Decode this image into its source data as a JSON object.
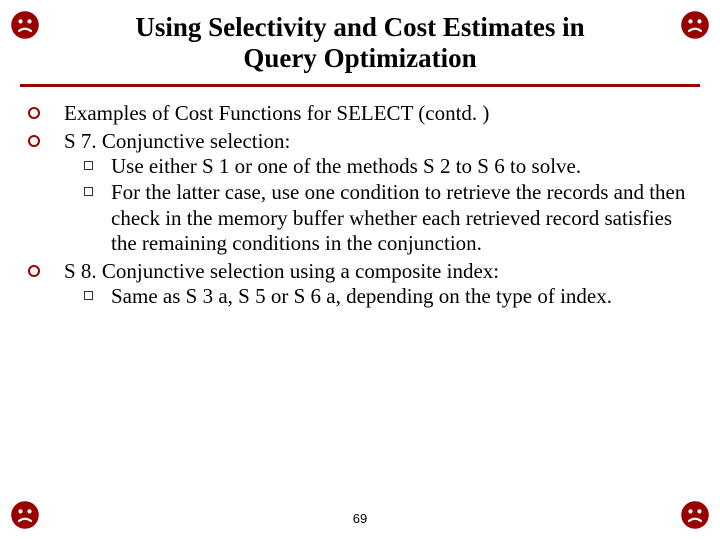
{
  "colors": {
    "accent": "#990000",
    "rule": "#990000",
    "bullet_m": "#990000",
    "bullet_q": "#333333",
    "text": "#000000"
  },
  "title": {
    "line1": "Using Selectivity and Cost Estimates in",
    "line2": "Query Optimization",
    "fontsize": 27
  },
  "body_fontsize": 21,
  "items": [
    {
      "text": "Examples of Cost Functions for SELECT (contd. )",
      "sub": []
    },
    {
      "text": "S 7. Conjunctive selection:",
      "sub": [
        "Use either S 1 or one of the methods S 2 to S 6 to solve.",
        "For the latter case, use one condition to retrieve the records and then check in the memory buffer whether each retrieved record satisfies the remaining conditions in the conjunction."
      ]
    },
    {
      "text": "S 8. Conjunctive selection using a composite index:",
      "sub": [
        "Same as S 3 a, S 5 or S 6 a, depending on the type of index."
      ]
    }
  ],
  "page_number": "69",
  "page_number_fontsize": 13
}
